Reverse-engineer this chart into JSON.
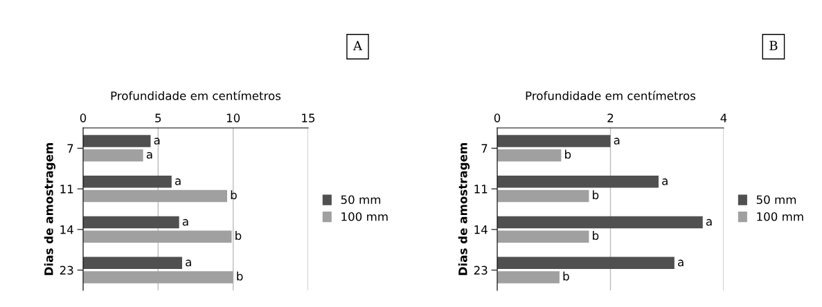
{
  "chart_data": [
    {
      "type": "bar",
      "orientation": "horizontal",
      "xlabel": "Profundidade em centímetros",
      "ylabel": "Dias de amostragem",
      "annotations": [
        "A"
      ],
      "categories": [
        "7",
        "11",
        "14",
        "23"
      ],
      "xlim": [
        0,
        15
      ],
      "xticks": [
        0,
        5,
        10,
        15
      ],
      "grid": "x",
      "legend": "right",
      "series": [
        {
          "name": "50 mm",
          "color": "#505050",
          "values": [
            4.5,
            5.9,
            6.4,
            6.6
          ],
          "value_labels": [
            "a",
            "a",
            "a",
            "a"
          ]
        },
        {
          "name": "100 mm",
          "color": "#a0a0a0",
          "values": [
            4.0,
            9.6,
            9.9,
            10.0
          ],
          "value_labels": [
            "a",
            "b",
            "b",
            "b"
          ]
        }
      ]
    },
    {
      "type": "bar",
      "orientation": "horizontal",
      "xlabel": "Profundidade em centímetros",
      "ylabel": "Dias de amostragem",
      "annotations": [
        "B"
      ],
      "categories": [
        "7",
        "11",
        "14",
        "23"
      ],
      "xlim": [
        0,
        4
      ],
      "xticks": [
        0,
        2,
        4
      ],
      "grid": "x",
      "legend": "right",
      "series": [
        {
          "name": "50 mm",
          "color": "#505050",
          "values": [
            2.0,
            2.85,
            3.63,
            3.13
          ],
          "value_labels": [
            "a",
            "a",
            "a",
            "a"
          ]
        },
        {
          "name": "100 mm",
          "color": "#a0a0a0",
          "values": [
            1.13,
            1.62,
            1.62,
            1.1
          ],
          "value_labels": [
            "b",
            "b",
            "b",
            "b"
          ]
        }
      ]
    }
  ]
}
